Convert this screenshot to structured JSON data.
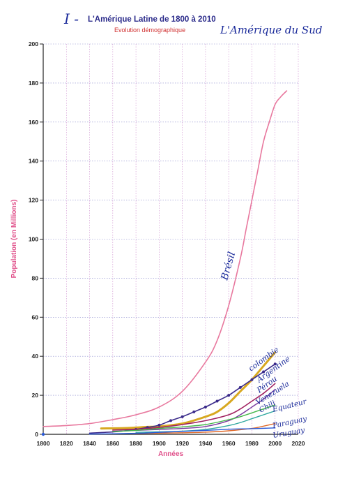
{
  "header": {
    "title": "L'Amérique Latine de 1800 à 2010",
    "subtitle": "Evolution démographique",
    "handwritten_prefix": "I -",
    "handwritten_note": "L'Amérique du Sud"
  },
  "colors": {
    "axis_title": "#e0508a",
    "title": "#2a2a8a",
    "subtitle": "#d03030",
    "grid_h": "#8888cc",
    "grid_v": "#cc88cc",
    "handwriting": "#1a2a9a"
  },
  "chart_data": {
    "type": "line",
    "title": "L'Amérique Latine de 1800 à 2010",
    "subtitle": "Evolution démographique",
    "xlabel": "Années",
    "ylabel": "Population  (en Millions)",
    "xlim": [
      1800,
      2020
    ],
    "ylim": [
      0,
      200
    ],
    "x_ticks": [
      "1800",
      "1820",
      "1840",
      "1860",
      "1880",
      "1900",
      "1920",
      "1940",
      "1960",
      "1980",
      "2000",
      "2020"
    ],
    "y_ticks": [
      "0",
      "20",
      "40",
      "60",
      "80",
      "100",
      "120",
      "140",
      "160",
      "180",
      "200"
    ],
    "grid": true,
    "series": [
      {
        "name": "Brésil",
        "color": "#e8789e",
        "width": 1.6,
        "points": [
          [
            1800,
            4
          ],
          [
            1820,
            4.5
          ],
          [
            1840,
            5.5
          ],
          [
            1860,
            7.5
          ],
          [
            1880,
            10
          ],
          [
            1900,
            14
          ],
          [
            1920,
            22
          ],
          [
            1940,
            37
          ],
          [
            1950,
            48
          ],
          [
            1960,
            66
          ],
          [
            1970,
            90
          ],
          [
            1975,
            105
          ],
          [
            1980,
            120
          ],
          [
            1985,
            135
          ],
          [
            1990,
            150
          ],
          [
            1995,
            160
          ],
          [
            2000,
            169
          ],
          [
            2005,
            173
          ],
          [
            2010,
            176
          ]
        ]
      },
      {
        "name": "Colombie",
        "color": "#d8a820",
        "width": 3,
        "points": [
          [
            1850,
            3
          ],
          [
            1870,
            3.2
          ],
          [
            1890,
            3.8
          ],
          [
            1900,
            4
          ],
          [
            1920,
            5.5
          ],
          [
            1940,
            9
          ],
          [
            1950,
            11.5
          ],
          [
            1960,
            16
          ],
          [
            1970,
            22
          ],
          [
            1980,
            28
          ],
          [
            1990,
            35
          ],
          [
            2000,
            42
          ]
        ]
      },
      {
        "name": "Argentine",
        "color": "#3a2a8a",
        "width": 1.6,
        "markers": true,
        "points": [
          [
            1840,
            0.6
          ],
          [
            1860,
            1.2
          ],
          [
            1870,
            1.8
          ],
          [
            1880,
            2.5
          ],
          [
            1890,
            3.5
          ],
          [
            1900,
            4.7
          ],
          [
            1910,
            7
          ],
          [
            1920,
            9
          ],
          [
            1930,
            11.5
          ],
          [
            1940,
            14
          ],
          [
            1950,
            17
          ],
          [
            1960,
            20
          ],
          [
            1970,
            24
          ],
          [
            1980,
            28
          ],
          [
            1990,
            32
          ],
          [
            2000,
            36
          ]
        ]
      },
      {
        "name": "Pérou",
        "color": "#a02060",
        "width": 1.6,
        "points": [
          [
            1860,
            2.2
          ],
          [
            1880,
            2.6
          ],
          [
            1900,
            3.5
          ],
          [
            1920,
            5
          ],
          [
            1940,
            7
          ],
          [
            1960,
            10
          ],
          [
            1970,
            13
          ],
          [
            1980,
            17
          ],
          [
            1990,
            21
          ],
          [
            2000,
            26
          ]
        ]
      },
      {
        "name": "Vénézuela",
        "color": "#7a3aa0",
        "width": 1.4,
        "points": [
          [
            1860,
            1.5
          ],
          [
            1880,
            2
          ],
          [
            1900,
            2.5
          ],
          [
            1920,
            3
          ],
          [
            1940,
            4
          ],
          [
            1960,
            7
          ],
          [
            1970,
            10
          ],
          [
            1980,
            14
          ],
          [
            1990,
            18
          ],
          [
            2000,
            23
          ]
        ]
      },
      {
        "name": "Chili",
        "color": "#44b84a",
        "width": 1.4,
        "points": [
          [
            1860,
            1.5
          ],
          [
            1880,
            2
          ],
          [
            1900,
            3
          ],
          [
            1920,
            3.8
          ],
          [
            1940,
            5
          ],
          [
            1960,
            7.5
          ],
          [
            1970,
            9
          ],
          [
            1980,
            11
          ],
          [
            1990,
            13
          ],
          [
            2000,
            15
          ]
        ]
      },
      {
        "name": "Equateur",
        "color": "#30a8a0",
        "width": 1.4,
        "points": [
          [
            1880,
            1
          ],
          [
            1900,
            1.3
          ],
          [
            1920,
            1.6
          ],
          [
            1940,
            2.5
          ],
          [
            1960,
            4.5
          ],
          [
            1970,
            6
          ],
          [
            1980,
            8
          ],
          [
            1990,
            10
          ],
          [
            2000,
            12
          ]
        ]
      },
      {
        "name": "Paraguay",
        "color": "#e06a2a",
        "width": 1.4,
        "points": [
          [
            1880,
            0.4
          ],
          [
            1900,
            0.6
          ],
          [
            1920,
            0.8
          ],
          [
            1940,
            1.1
          ],
          [
            1960,
            1.8
          ],
          [
            1980,
            3
          ],
          [
            1990,
            4.2
          ],
          [
            2000,
            5.5
          ]
        ]
      },
      {
        "name": "Uruguay",
        "color": "#2a5ad8",
        "width": 1.4,
        "points": [
          [
            1840,
            0.1
          ],
          [
            1880,
            0.5
          ],
          [
            1900,
            1
          ],
          [
            1920,
            1.5
          ],
          [
            1940,
            2
          ],
          [
            1960,
            2.6
          ],
          [
            1980,
            2.9
          ],
          [
            2000,
            3.3
          ]
        ]
      }
    ],
    "annotations": [
      "Brésil",
      "colombie",
      "Argentine",
      "Pérou",
      "Venezuela",
      "Chili",
      "Equateur",
      "Paraguay",
      "Uruguay"
    ]
  }
}
